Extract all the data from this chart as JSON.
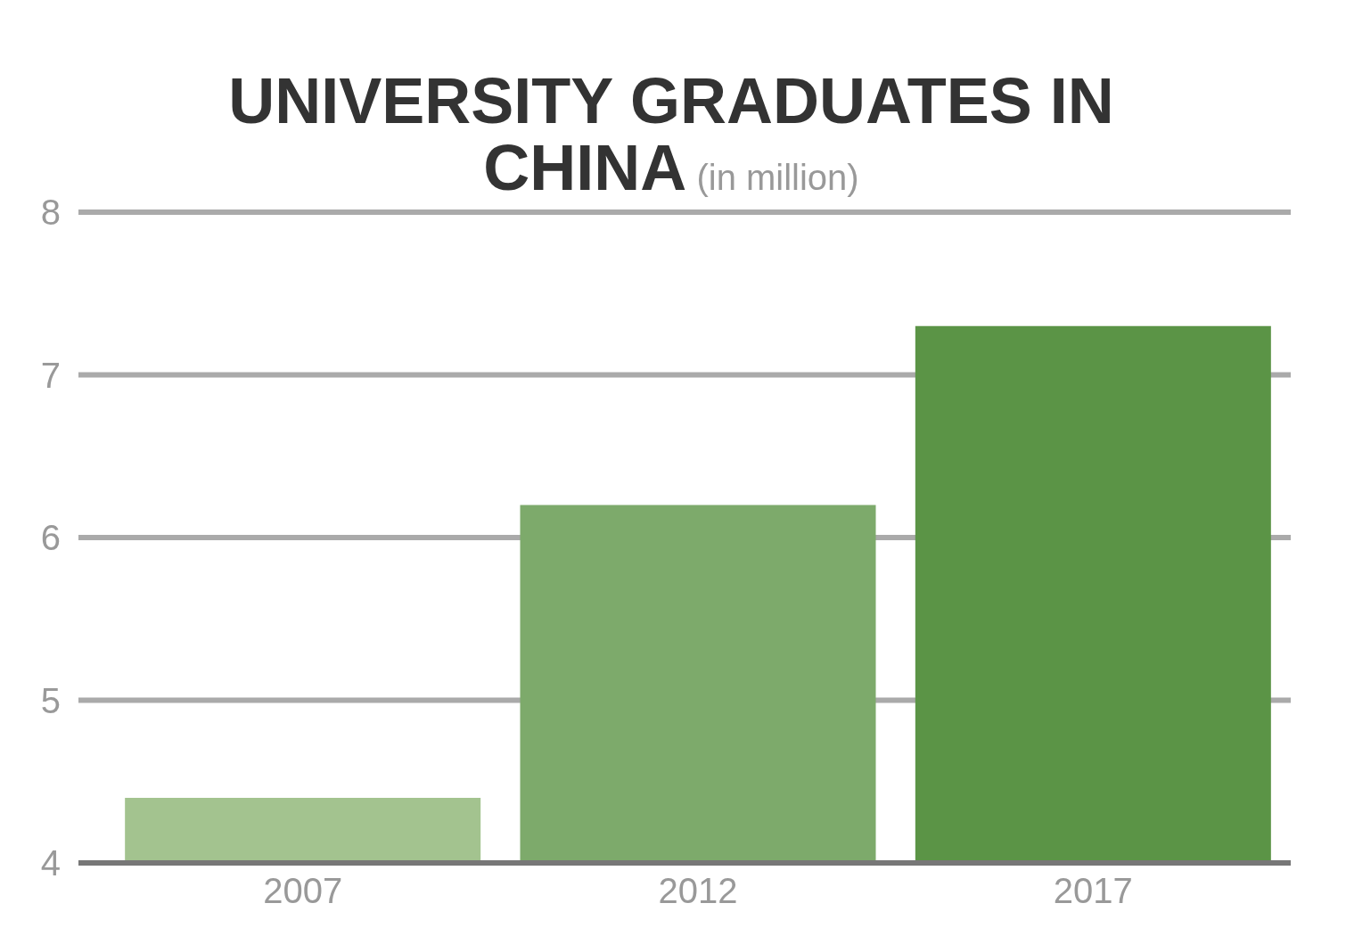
{
  "chart_data": {
    "type": "bar",
    "title": "UNIVERSITY GRADUATES IN CHINA",
    "subtitle": "(in million)",
    "categories": [
      "2007",
      "2012",
      "2017"
    ],
    "values": [
      4.4,
      6.2,
      7.3
    ],
    "colors": [
      "#a3c38f",
      "#7daa6b",
      "#5b9446"
    ],
    "ylim": [
      4,
      8
    ],
    "yticks": [
      4,
      5,
      6,
      7,
      8
    ],
    "grid": "y"
  }
}
